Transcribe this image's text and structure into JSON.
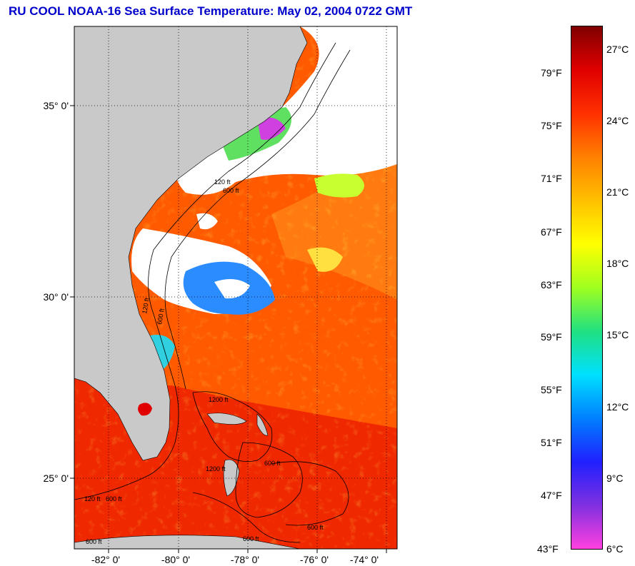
{
  "title": "RU COOL  NOAA-16  Sea Surface Temperature:  May 02, 2004 0722 GMT",
  "map": {
    "lon_ticks": [
      "-82° 0'",
      "-80° 0'",
      "-78° 0'",
      "-76° 0'",
      "-74° 0'"
    ],
    "lat_ticks": [
      "35° 0'",
      "30° 0'",
      "25° 0'"
    ],
    "contour_labels": [
      "120 ft",
      "600 ft",
      "120 ft",
      "600 ft",
      "1200 ft",
      "600 ft",
      "120 ft",
      "600 ft",
      "600 ft",
      "600 ft",
      "600 ft",
      "1200 ft"
    ]
  },
  "colorbar": {
    "fahrenheit": [
      "79°F",
      "75°F",
      "71°F",
      "67°F",
      "63°F",
      "59°F",
      "55°F",
      "51°F",
      "47°F",
      "43°F"
    ],
    "celsius": [
      "27°C",
      "24°C",
      "21°C",
      "18°C",
      "15°C",
      "12°C",
      "9°C",
      "6°C"
    ],
    "colors": [
      "#ff40e0",
      "#8030e0",
      "#2020ff",
      "#0080ff",
      "#00e0ff",
      "#20e080",
      "#a0ff20",
      "#ffff00",
      "#ffc000",
      "#ff8000",
      "#ff3000",
      "#e00000",
      "#800000"
    ]
  }
}
